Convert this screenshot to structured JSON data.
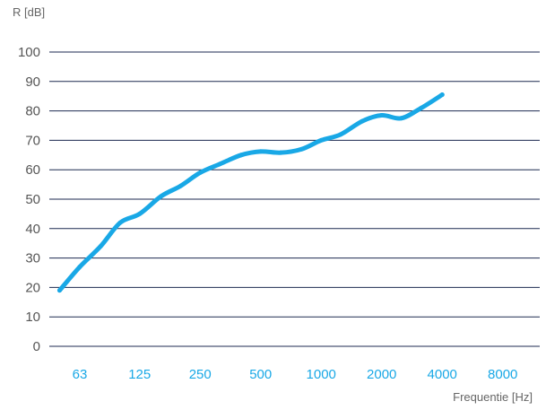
{
  "chart_data": {
    "type": "line",
    "title": "",
    "ylabel": "R [dB]",
    "xlabel": "Frequentie [Hz]",
    "ylim": [
      0,
      100
    ],
    "yticks": [
      0,
      10,
      20,
      30,
      40,
      50,
      60,
      70,
      80,
      90,
      100
    ],
    "xticks": [
      "63",
      "125",
      "250",
      "500",
      "1000",
      "2000",
      "4000",
      "8000"
    ],
    "xscale": "log",
    "grid": "horizontal",
    "legend": "none",
    "colors": {
      "series": "#19a8e6",
      "tick_x": "#19a8e6",
      "tick_y": "#555555",
      "grid": "#1d2a50",
      "axis_title": "#666666"
    },
    "series": [
      {
        "points": [
          {
            "x": 50,
            "y": 19
          },
          {
            "x": 63,
            "y": 27
          },
          {
            "x": 80,
            "y": 34
          },
          {
            "x": 100,
            "y": 42
          },
          {
            "x": 125,
            "y": 45
          },
          {
            "x": 160,
            "y": 51
          },
          {
            "x": 200,
            "y": 54.5
          },
          {
            "x": 250,
            "y": 59
          },
          {
            "x": 315,
            "y": 62
          },
          {
            "x": 400,
            "y": 65
          },
          {
            "x": 500,
            "y": 66.2
          },
          {
            "x": 630,
            "y": 65.8
          },
          {
            "x": 800,
            "y": 67
          },
          {
            "x": 1000,
            "y": 70
          },
          {
            "x": 1250,
            "y": 72
          },
          {
            "x": 1600,
            "y": 76.5
          },
          {
            "x": 2000,
            "y": 78.5
          },
          {
            "x": 2500,
            "y": 77.5
          },
          {
            "x": 3150,
            "y": 81
          },
          {
            "x": 4000,
            "y": 85.5
          }
        ]
      }
    ]
  }
}
